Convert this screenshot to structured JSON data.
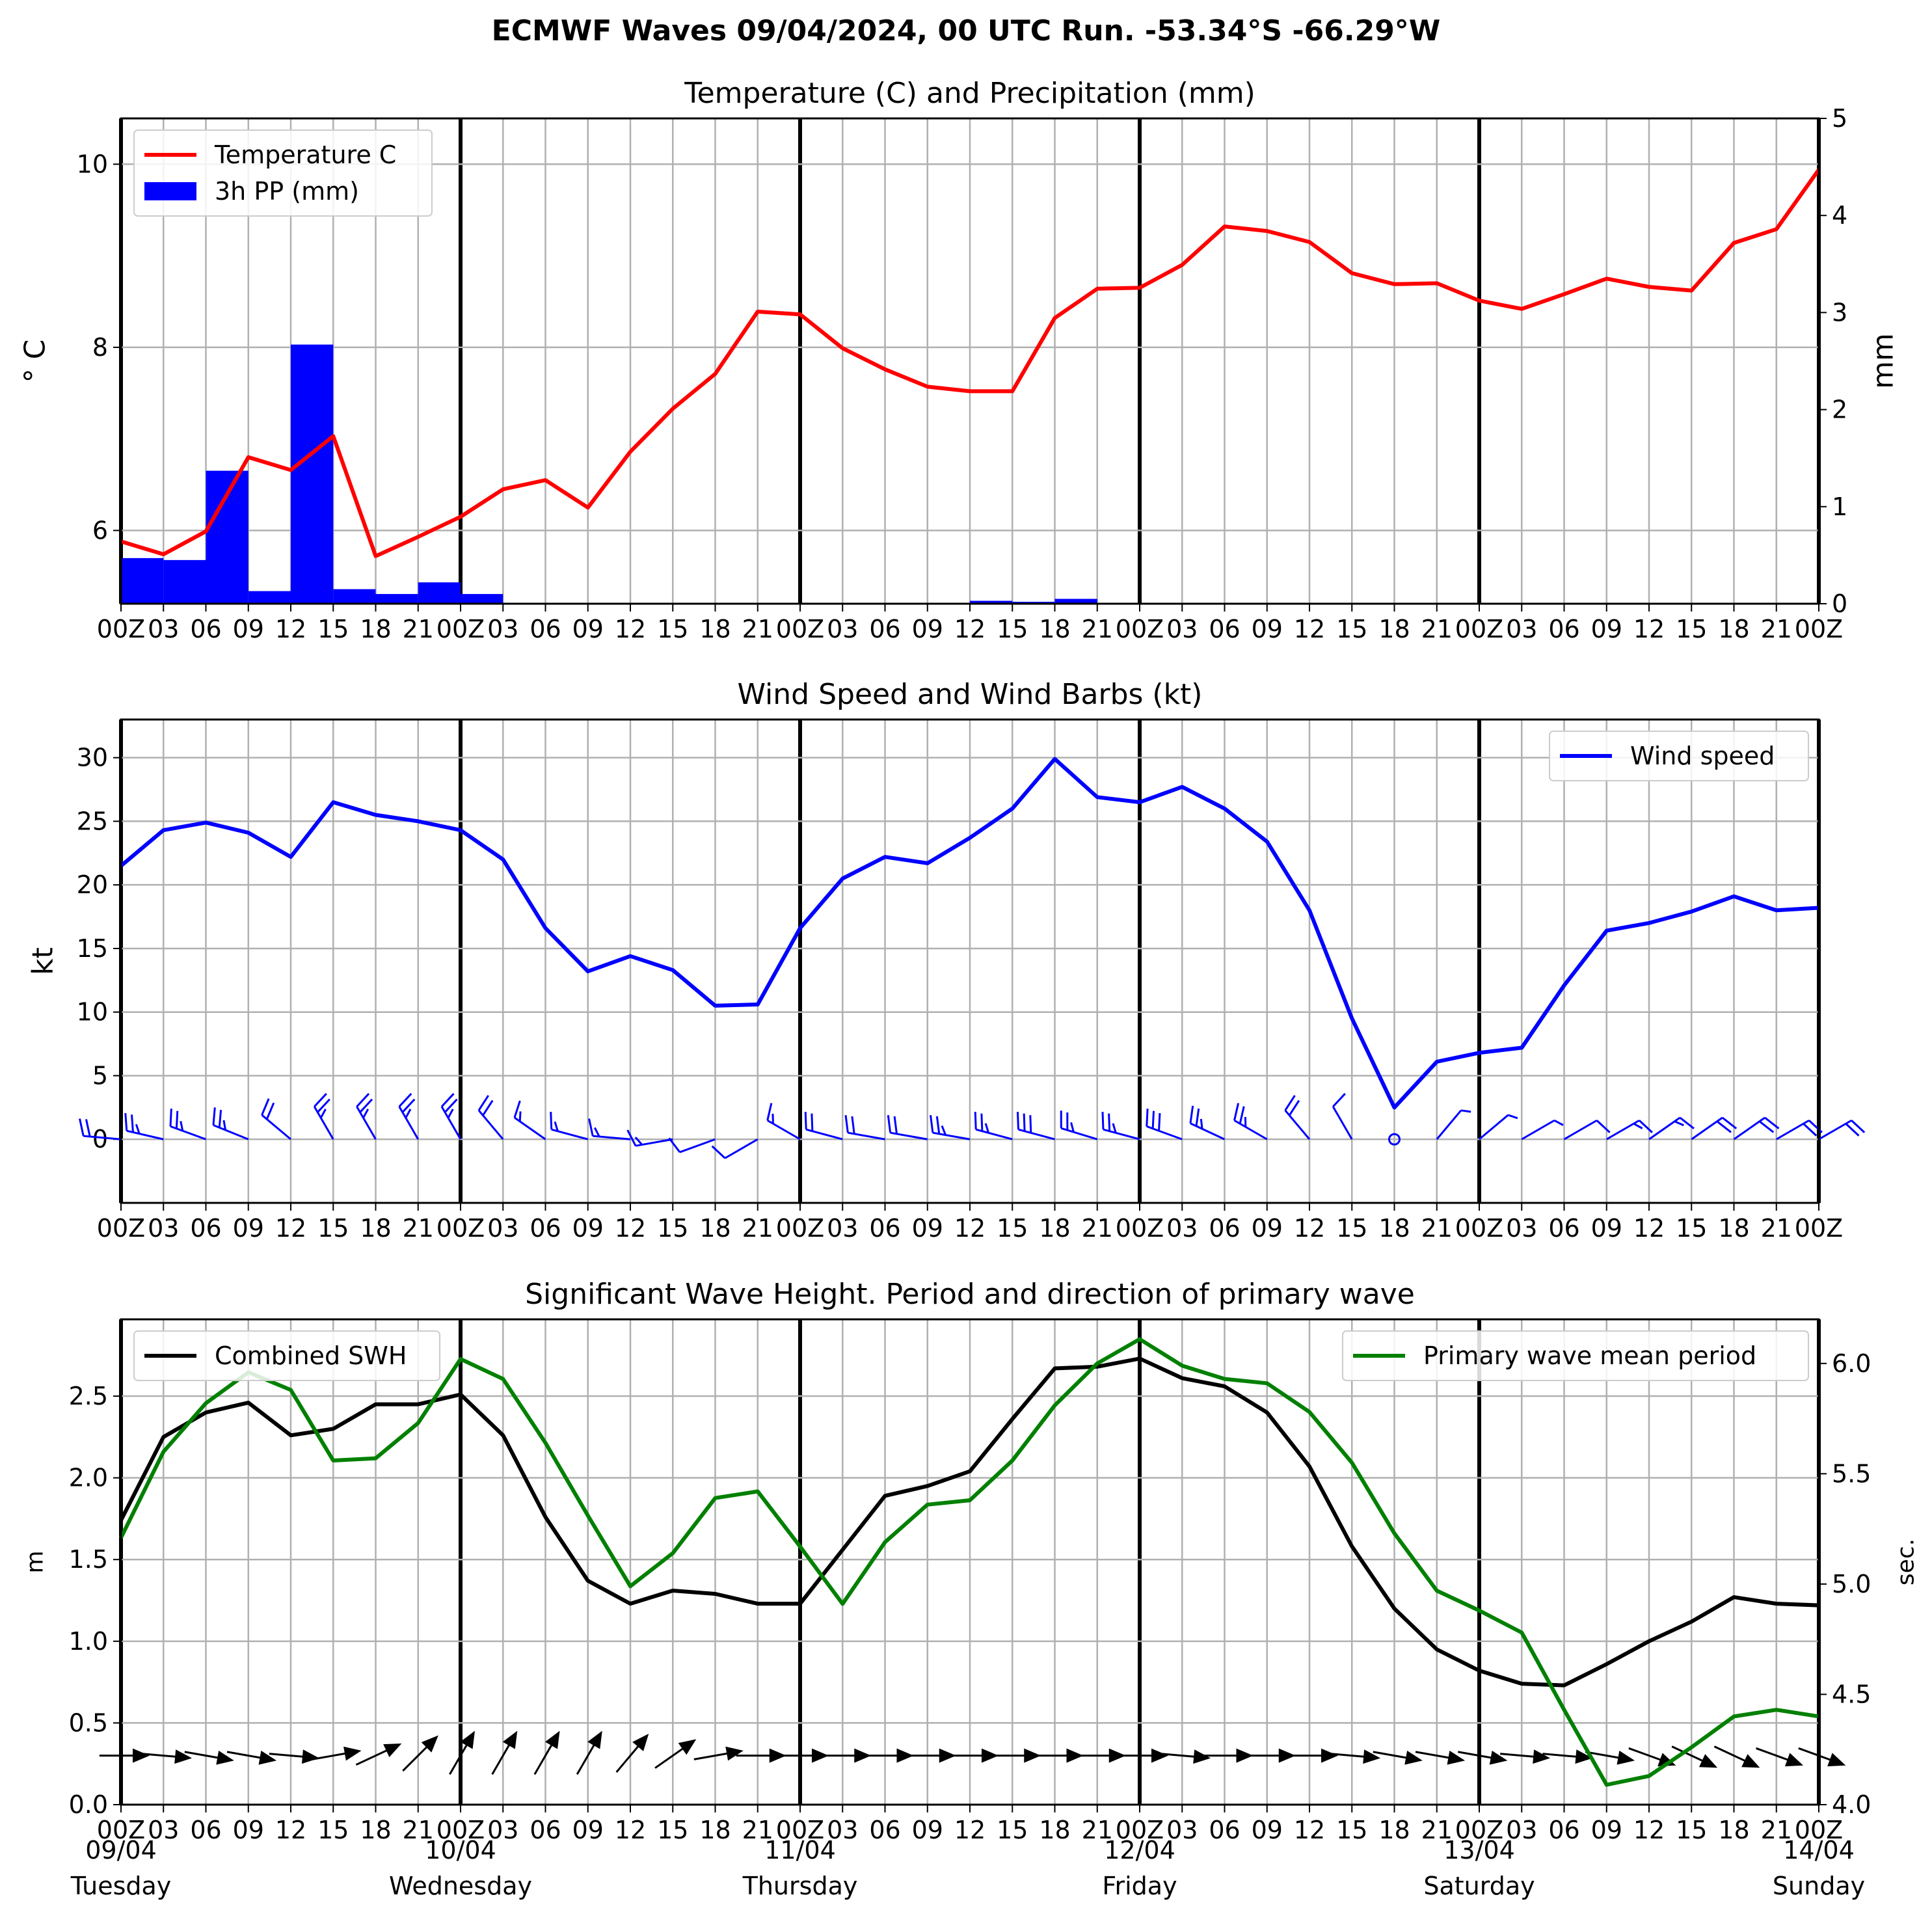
{
  "suptitle": "ECMWF Waves 09/04/2024, 00 UTC Run. -53.34°S -66.29°W",
  "x_tick_labels": [
    "00Z",
    "03",
    "06",
    "09",
    "12",
    "15",
    "18",
    "21",
    "00Z",
    "03",
    "06",
    "09",
    "12",
    "15",
    "18",
    "21",
    "00Z",
    "03",
    "06",
    "09",
    "12",
    "15",
    "18",
    "21",
    "00Z",
    "03",
    "06",
    "09",
    "12",
    "15",
    "18",
    "21",
    "00Z",
    "03",
    "06",
    "09",
    "12",
    "15",
    "18",
    "21",
    "00Z"
  ],
  "day_labels": [
    {
      "date": "09/04",
      "day": "Tuesday",
      "t": 0
    },
    {
      "date": "10/04",
      "day": "Wednesday",
      "t": 8
    },
    {
      "date": "11/04",
      "day": "Thursday",
      "t": 16
    },
    {
      "date": "12/04",
      "day": "Friday",
      "t": 24
    },
    {
      "date": "13/04",
      "day": "Saturday",
      "t": 32
    },
    {
      "date": "14/04",
      "day": "Sunday",
      "t": 40
    }
  ],
  "chart_data": [
    {
      "type": "line",
      "title": "Temperature (C) and Precipitation (mm)",
      "ylabel": "° C",
      "ylabel_right": "mm",
      "ylim": [
        5.2,
        10.5
      ],
      "ylim_right": [
        0,
        5
      ],
      "yticks": [
        6,
        8,
        10
      ],
      "yticks_right": [
        0,
        1,
        2,
        3,
        4,
        5
      ],
      "grid": true,
      "legend": "upper-left",
      "series": [
        {
          "name": "Temperature C",
          "color": "#ff0000",
          "axis": "left",
          "values": [
            5.88,
            5.74,
            5.99,
            6.8,
            6.66,
            7.03,
            5.72,
            5.93,
            6.15,
            6.45,
            6.55,
            6.25,
            6.86,
            7.33,
            7.71,
            8.39,
            8.36,
            7.99,
            7.76,
            7.57,
            7.52,
            7.52,
            8.32,
            8.64,
            8.65,
            8.9,
            9.32,
            9.27,
            9.15,
            8.81,
            8.69,
            8.7,
            8.51,
            8.42,
            8.58,
            8.75,
            8.66,
            8.62,
            9.14,
            9.29,
            9.94
          ]
        },
        {
          "name": "3h PP (mm)",
          "type": "bar",
          "color": "#0000ff",
          "axis": "right",
          "values": [
            0.47,
            0.45,
            1.37,
            0.13,
            2.67,
            0.15,
            0.1,
            0.22,
            0.1,
            0,
            0,
            0,
            0,
            0,
            0,
            0,
            0,
            0,
            0,
            0,
            0.03,
            0.02,
            0.05,
            0,
            0,
            0,
            0,
            0,
            0,
            0,
            0,
            0,
            0,
            0,
            0,
            0,
            0,
            0,
            0,
            0
          ]
        }
      ]
    },
    {
      "type": "line",
      "title": "Wind Speed and Wind Barbs (kt)",
      "ylabel": "kt",
      "ylim": [
        -5,
        33
      ],
      "yticks": [
        0,
        5,
        10,
        15,
        20,
        25,
        30
      ],
      "grid": true,
      "legend": "upper-right",
      "series": [
        {
          "name": "Wind speed",
          "color": "#0000ff",
          "values": [
            21.5,
            24.3,
            24.9,
            24.1,
            22.2,
            26.5,
            25.5,
            25.0,
            24.3,
            22.0,
            16.6,
            13.2,
            14.4,
            13.3,
            10.5,
            10.6,
            16.6,
            20.5,
            22.2,
            21.7,
            23.7,
            26.0,
            29.9,
            26.9,
            26.5,
            27.7,
            26.0,
            23.4,
            18.0,
            9.5,
            2.5,
            6.1,
            6.8,
            7.2,
            12.1,
            16.4,
            17.0,
            17.9,
            19.1,
            18.0,
            18.2
          ]
        },
        {
          "name": "wind barb direction (deg)",
          "type": "barbs",
          "color": "#0000ff",
          "values": [
            275,
            283,
            290,
            292,
            310,
            330,
            330,
            330,
            330,
            320,
            305,
            285,
            275,
            260,
            250,
            240,
            300,
            285,
            280,
            280,
            280,
            285,
            285,
            287,
            285,
            290,
            295,
            300,
            320,
            330,
            360,
            40,
            50,
            60,
            60,
            60,
            55,
            55,
            55,
            60,
            60
          ]
        }
      ]
    },
    {
      "type": "line",
      "title": "Significant Wave Height. Period and direction of primary wave",
      "ylabel": "m",
      "ylabel_right": "sec.",
      "ylim": [
        0,
        2.97
      ],
      "ylim_right": [
        4.0,
        6.2
      ],
      "yticks": [
        0.0,
        0.5,
        1.0,
        1.5,
        2.0,
        2.5
      ],
      "yticks_right": [
        4.0,
        4.5,
        5.0,
        5.5,
        6.0
      ],
      "grid": true,
      "series": [
        {
          "name": "Combined SWH",
          "color": "#000000",
          "axis": "left",
          "legend": "upper-left",
          "values": [
            1.74,
            2.25,
            2.4,
            2.46,
            2.26,
            2.3,
            2.45,
            2.45,
            2.51,
            2.26,
            1.76,
            1.37,
            1.23,
            1.31,
            1.29,
            1.23,
            1.23,
            1.56,
            1.89,
            1.95,
            2.04,
            2.36,
            2.67,
            2.68,
            2.73,
            2.61,
            2.56,
            2.4,
            2.07,
            1.58,
            1.2,
            0.95,
            0.82,
            0.74,
            0.73,
            0.86,
            1.0,
            1.12,
            1.27,
            1.23,
            1.22
          ]
        },
        {
          "name": "Primary wave mean period",
          "color": "#008000",
          "axis": "right",
          "legend": "upper-right",
          "values": [
            5.21,
            5.6,
            5.82,
            5.96,
            5.88,
            5.56,
            5.57,
            5.73,
            6.02,
            5.93,
            5.64,
            5.31,
            4.99,
            5.14,
            5.39,
            5.42,
            5.17,
            4.91,
            5.19,
            5.36,
            5.38,
            5.56,
            5.81,
            6.0,
            6.11,
            5.99,
            5.93,
            5.91,
            5.78,
            5.55,
            5.23,
            4.97,
            4.88,
            4.78,
            4.43,
            4.09,
            4.13,
            4.26,
            4.4,
            4.43,
            4.4
          ]
        },
        {
          "name": "primary wave direction (deg)",
          "type": "arrows",
          "color": "#000000",
          "values": [
            90,
            95,
            100,
            100,
            95,
            80,
            65,
            45,
            30,
            30,
            30,
            30,
            40,
            55,
            80,
            90,
            90,
            90,
            90,
            90,
            90,
            90,
            90,
            90,
            90,
            95,
            90,
            90,
            90,
            95,
            100,
            100,
            100,
            95,
            95,
            100,
            110,
            115,
            115,
            110,
            110
          ]
        }
      ]
    }
  ]
}
